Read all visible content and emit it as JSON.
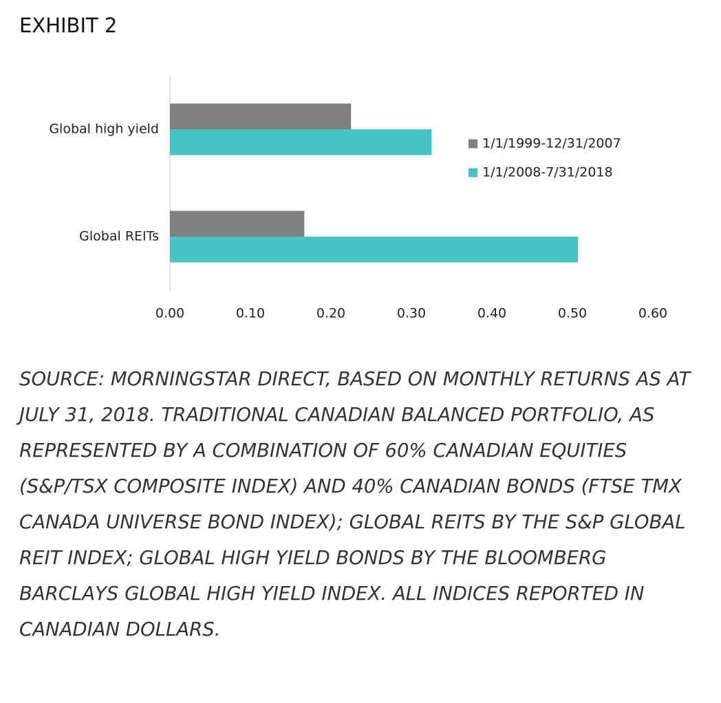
{
  "header": {
    "title": "EXHIBIT 2"
  },
  "chart_data": {
    "type": "bar",
    "orientation": "horizontal",
    "categories": [
      "Global high yield",
      "Global REITs"
    ],
    "series": [
      {
        "name": "1/1/1999-12/31/2007",
        "color": "#808080",
        "values": [
          0.225,
          0.167
        ]
      },
      {
        "name": "1/1/2008-7/31/2018",
        "color": "#47c2c5",
        "values": [
          0.325,
          0.507
        ]
      }
    ],
    "xlim": [
      0,
      0.6
    ],
    "xticks": [
      {
        "value": 0,
        "label": "0.00"
      },
      {
        "value": 0.1,
        "label": "0.10"
      },
      {
        "value": 0.2,
        "label": "0.20"
      },
      {
        "value": 0.3,
        "label": "0.30"
      },
      {
        "value": 0.4,
        "label": "0.40"
      },
      {
        "value": 0.5,
        "label": "0.50"
      },
      {
        "value": 0.6,
        "label": "0.60"
      }
    ],
    "legend": "right",
    "grid": false
  },
  "source": "Source: Morningstar Direct, based on monthly returns as at July 31, 2018. Traditional Canadian balanced portfolio, as represented by a combination of 60% Canadian equities (S&P/TSX Composite Index) and 40% Canadian bonds (FTSE TMX Canada Universe Bond Index); Global REITs by the S&P Global REIT Index; Global high yield bonds by the Bloomberg Barclays Global High Yield Index. All indices reported in Canadian dollars."
}
